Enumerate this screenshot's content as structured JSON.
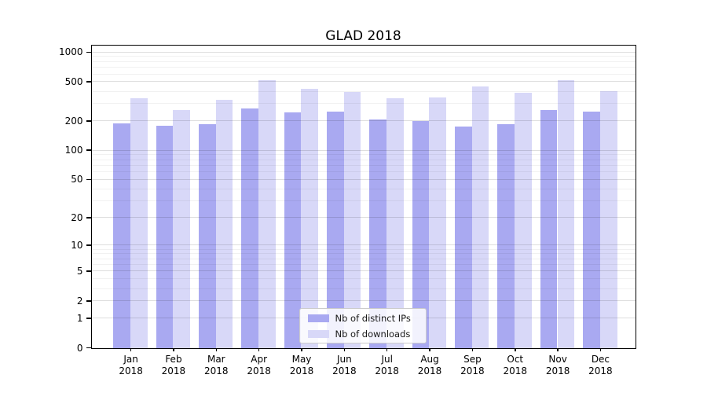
{
  "title": "GLAD 2018",
  "legend": {
    "items": [
      {
        "label": "Nb of distinct IPs",
        "color": "#a9a9f1"
      },
      {
        "label": "Nb of downloads",
        "color": "#d8d8f8"
      }
    ]
  },
  "chart_data": {
    "type": "bar",
    "title": "GLAD 2018",
    "xlabel": "",
    "ylabel": "",
    "yscale": "log1p",
    "ylim": [
      0,
      1000
    ],
    "grid": true,
    "legend_position": "lower center",
    "months": [
      "Jan",
      "Feb",
      "Mar",
      "Apr",
      "May",
      "Jun",
      "Jul",
      "Aug",
      "Sep",
      "Oct",
      "Nov",
      "Dec"
    ],
    "year": "2018",
    "categories": [
      "Jan 2018",
      "Feb 2018",
      "Mar 2018",
      "Apr 2018",
      "May 2018",
      "Jun 2018",
      "Jul 2018",
      "Aug 2018",
      "Sep 2018",
      "Oct 2018",
      "Nov 2018",
      "Dec 2018"
    ],
    "series": [
      {
        "name": "Nb of distinct IPs",
        "color": "#a9a9f1",
        "values": [
          189,
          179,
          188,
          272,
          246,
          251,
          209,
          201,
          177,
          186,
          262,
          251
        ]
      },
      {
        "name": "Nb of downloads",
        "color": "#d8d8f8",
        "values": [
          341,
          262,
          331,
          524,
          428,
          397,
          340,
          348,
          455,
          388,
          524,
          405
        ]
      }
    ],
    "y_major_ticks": [
      0,
      1,
      2,
      5,
      10,
      20,
      50,
      100,
      200,
      500,
      1000
    ],
    "y_tick_labels": [
      "0",
      "1",
      "2",
      "5",
      "10",
      "20",
      "50",
      "100",
      "200",
      "500",
      "1000"
    ],
    "y_minor_gridlines": [
      3,
      4,
      6,
      7,
      8,
      9,
      30,
      40,
      60,
      70,
      80,
      90,
      300,
      400,
      600,
      700,
      800,
      900
    ]
  },
  "colors": {
    "major_grid": "rgba(0,0,0,0.13)",
    "minor_grid": "rgba(0,0,0,0.055)",
    "spine": "#000000",
    "background": "#ffffff"
  }
}
